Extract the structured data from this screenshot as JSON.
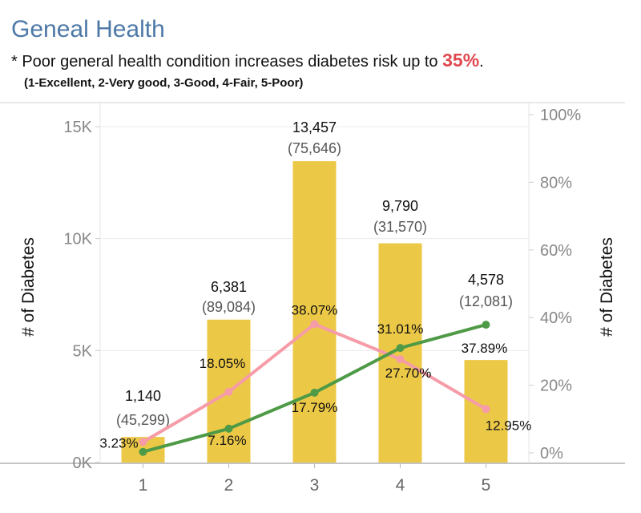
{
  "header": {
    "title": "Geneal Health",
    "subtitle_prefix": "* Poor general health condition increases diabetes risk up to ",
    "subtitle_highlight": "35%",
    "subtitle_suffix": ".",
    "scale_legend": "(1-Excellent, 2-Very good, 3-Good, 4-Fair, 5-Poor)"
  },
  "colors": {
    "bar": "#ecc847",
    "line_pink": "#f59ca8",
    "line_green": "#4e9a46",
    "title": "#4e79a7",
    "highlight": "#e0484f"
  },
  "chart_data": {
    "type": "bar",
    "categories": [
      "1",
      "2",
      "3",
      "4",
      "5"
    ],
    "series": [
      {
        "kind": "bar",
        "axis": "left",
        "values": [
          1140,
          6381,
          13457,
          9790,
          4578
        ],
        "labels": [
          "1,140",
          "6,381",
          "13,457",
          "9,790",
          "4,578"
        ],
        "sublabels": [
          "(45,299)",
          "(89,084)",
          "(75,646)",
          "(31,570)",
          "(12,081)"
        ]
      },
      {
        "kind": "line",
        "axis": "right",
        "color": "#f59ca8",
        "values": [
          3.23,
          18.05,
          38.07,
          27.7,
          12.95
        ],
        "labels": [
          "3.23%",
          "18.05%",
          "38.07%",
          "27.70%",
          "12.95%"
        ]
      },
      {
        "kind": "line",
        "axis": "right",
        "color": "#4e9a46",
        "values": [
          0.3,
          7.16,
          17.79,
          31.01,
          37.89
        ],
        "labels": [
          "",
          "7.16%",
          "17.79%",
          "31.01%",
          "37.89%"
        ]
      }
    ],
    "ylabel_left": "# of Diabetes",
    "ylabel_right": "# of Diabetes",
    "ylim_left": [
      0,
      15000
    ],
    "yticks_left": [
      0,
      5000,
      10000,
      15000
    ],
    "yticklabels_left": [
      "0K",
      "5K",
      "10K",
      "15K"
    ],
    "ylim_right": [
      0,
      100
    ],
    "yticks_right": [
      0,
      20,
      40,
      60,
      80,
      100
    ],
    "yticklabels_right": [
      "0%",
      "20%",
      "40%",
      "60%",
      "80%",
      "100%"
    ],
    "grid": true
  }
}
